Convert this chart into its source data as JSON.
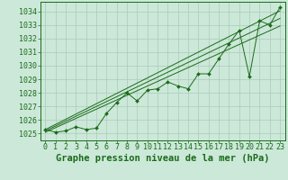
{
  "title": "Graphe pression niveau de la mer (hPa)",
  "x_data": [
    0,
    1,
    2,
    3,
    4,
    5,
    6,
    7,
    8,
    9,
    10,
    11,
    12,
    13,
    14,
    15,
    16,
    17,
    18,
    19,
    20,
    21,
    22,
    23
  ],
  "y_main": [
    1025.3,
    1025.1,
    1025.2,
    1025.5,
    1025.3,
    1025.4,
    1026.5,
    1027.3,
    1028.0,
    1027.4,
    1028.2,
    1028.3,
    1028.8,
    1028.5,
    1028.3,
    1029.4,
    1029.4,
    1030.5,
    1031.6,
    1032.6,
    1029.2,
    1033.3,
    1033.0,
    1034.3
  ],
  "y_linear1": [
    1025.3,
    1025.68,
    1026.06,
    1026.44,
    1026.82,
    1027.2,
    1027.58,
    1027.96,
    1028.34,
    1028.72,
    1029.1,
    1029.48,
    1029.86,
    1030.24,
    1030.62,
    1031.0,
    1031.38,
    1031.76,
    1032.14,
    1032.52,
    1032.9,
    1033.28,
    1033.66,
    1034.04
  ],
  "y_linear2": [
    1025.2,
    1025.56,
    1025.92,
    1026.28,
    1026.64,
    1027.0,
    1027.36,
    1027.72,
    1028.08,
    1028.44,
    1028.8,
    1029.16,
    1029.52,
    1029.88,
    1030.24,
    1030.6,
    1030.96,
    1031.32,
    1031.68,
    1032.04,
    1032.4,
    1032.76,
    1033.12,
    1033.48
  ],
  "y_linear3": [
    1025.1,
    1025.44,
    1025.78,
    1026.12,
    1026.46,
    1026.8,
    1027.14,
    1027.48,
    1027.82,
    1028.16,
    1028.5,
    1028.84,
    1029.18,
    1029.52,
    1029.86,
    1030.2,
    1030.54,
    1030.88,
    1031.22,
    1031.56,
    1031.9,
    1032.24,
    1032.58,
    1032.92
  ],
  "ylim": [
    1024.5,
    1034.7
  ],
  "xlim": [
    -0.5,
    23.5
  ],
  "yticks": [
    1025,
    1026,
    1027,
    1028,
    1029,
    1030,
    1031,
    1032,
    1033,
    1034
  ],
  "xticks": [
    0,
    1,
    2,
    3,
    4,
    5,
    6,
    7,
    8,
    9,
    10,
    11,
    12,
    13,
    14,
    15,
    16,
    17,
    18,
    19,
    20,
    21,
    22,
    23
  ],
  "line_color": "#1a6b1a",
  "bg_color": "#cce8d8",
  "grid_color": "#aacaba",
  "text_color": "#1a6b1a",
  "title_fontsize": 7.5,
  "tick_fontsize": 6.0
}
